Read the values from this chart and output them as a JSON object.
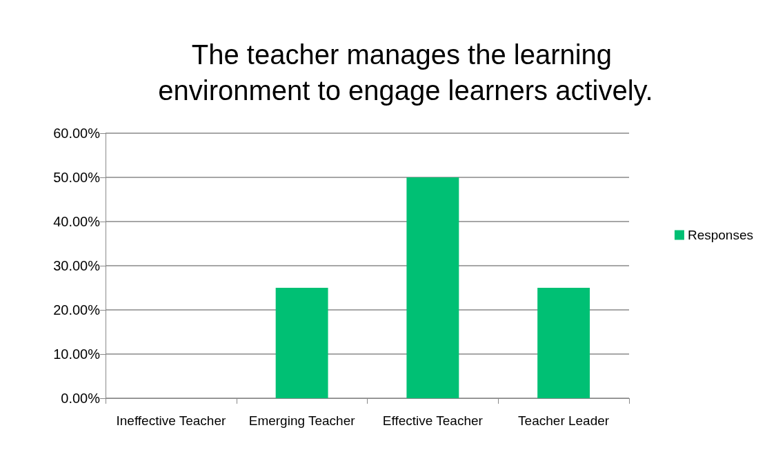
{
  "chart_data": {
    "type": "bar",
    "title": "The teacher manages the learning environment to engage learners actively.",
    "categories": [
      "Ineffective Teacher",
      "Emerging Teacher",
      "Effective Teacher",
      "Teacher Leader"
    ],
    "series": [
      {
        "name": "Responses",
        "color": "#00c074",
        "values": [
          0,
          25,
          50,
          25
        ]
      }
    ],
    "ylim": [
      0,
      60
    ],
    "yticks": [
      {
        "value": 0,
        "label": "0.00%"
      },
      {
        "value": 10,
        "label": "10.00%"
      },
      {
        "value": 20,
        "label": "20.00%"
      },
      {
        "value": 30,
        "label": "30.00%"
      },
      {
        "value": 40,
        "label": "40.00%"
      },
      {
        "value": 50,
        "label": "50.00%"
      },
      {
        "value": 60,
        "label": "60.00%"
      }
    ],
    "grid": "y",
    "legend": "right"
  }
}
